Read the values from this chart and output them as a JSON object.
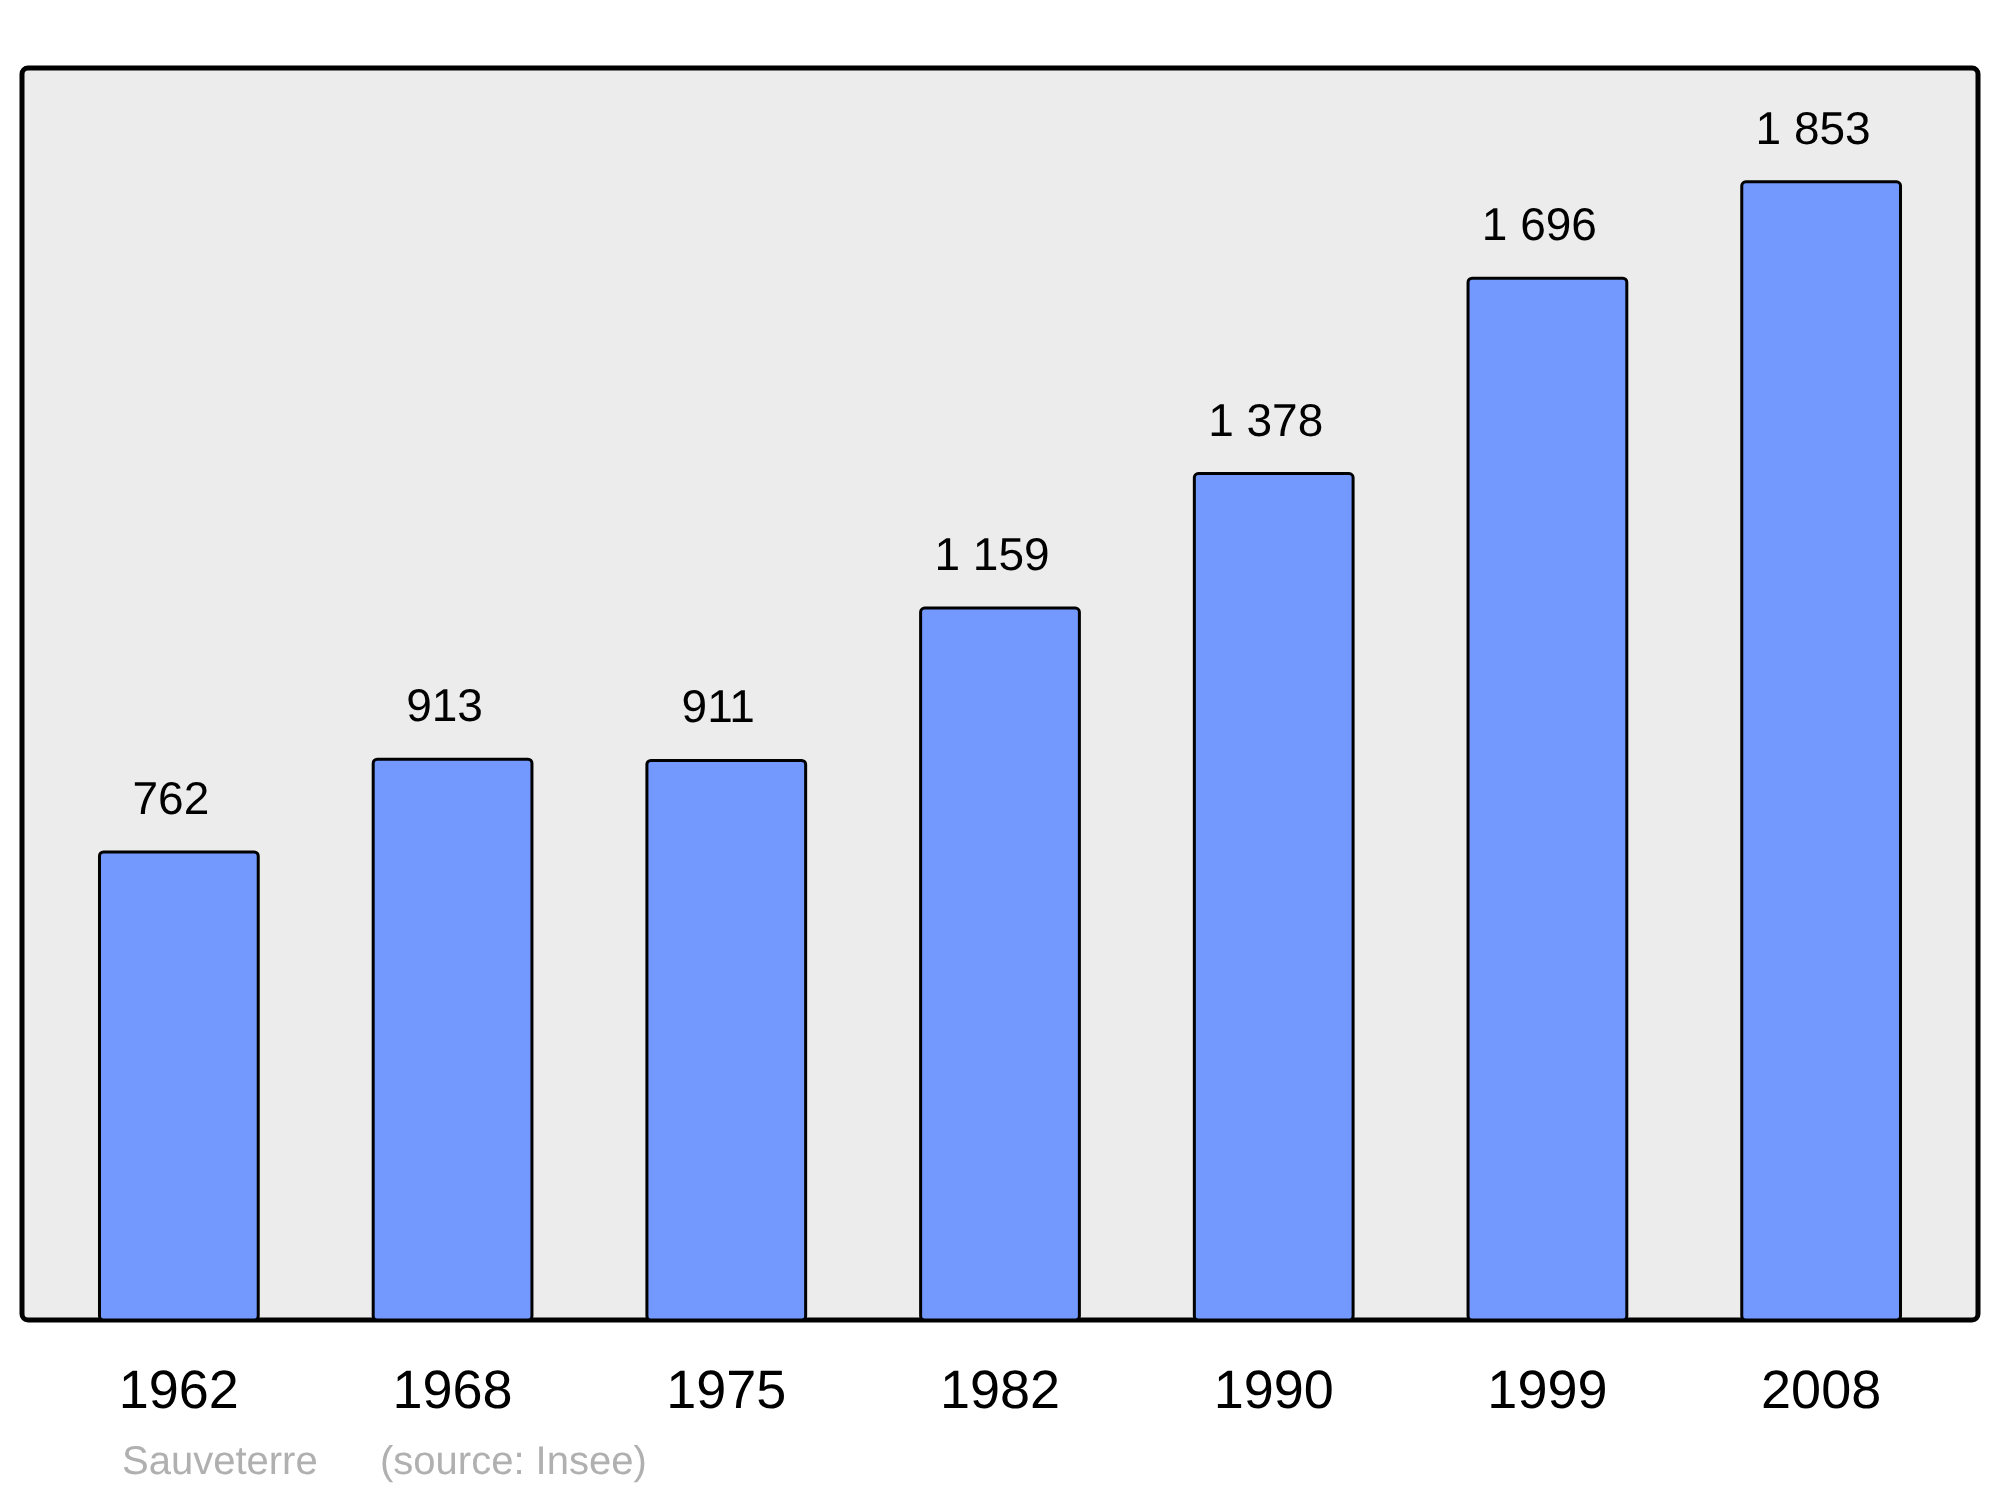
{
  "chart_data": {
    "type": "bar",
    "categories": [
      "1962",
      "1968",
      "1975",
      "1982",
      "1990",
      "1999",
      "2008"
    ],
    "values": [
      762,
      913,
      911,
      1159,
      1378,
      1696,
      1853
    ],
    "value_labels": [
      "762",
      "913",
      "911",
      "1 159",
      "1 378",
      "1 696",
      "1 853"
    ],
    "color": "#7399ff",
    "annotations": [
      "Sauveterre",
      "(source: Insee)"
    ]
  }
}
